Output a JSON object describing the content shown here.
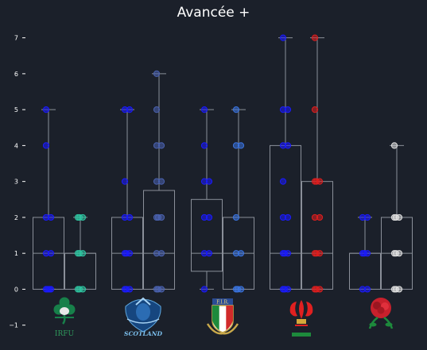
{
  "chart_data": {
    "type": "box",
    "title": "Avancée +",
    "ylim": [
      -1.25,
      7.5
    ],
    "yticks": [
      -1,
      0,
      1,
      2,
      3,
      4,
      5,
      6,
      7
    ],
    "grid": false,
    "legend": "none",
    "groups": [
      {
        "team": "Ireland",
        "crest_text": "IRFU",
        "boxes": [
          {
            "color": "#1a1aff",
            "q1": 0,
            "median": 1,
            "q3": 2,
            "whisker_low": 0,
            "whisker_high": 5,
            "points": [
              0,
              0,
              0,
              0,
              1,
              1,
              2,
              2,
              4,
              5
            ]
          },
          {
            "color": "#2ec4a0",
            "q1": 0,
            "median": 1,
            "q3": 1,
            "whisker_low": 0,
            "whisker_high": 2,
            "points": [
              0,
              0,
              0,
              1,
              1,
              1,
              2,
              2,
              2
            ]
          }
        ]
      },
      {
        "team": "Scotland",
        "crest_text": "SCOTLAND",
        "boxes": [
          {
            "color": "#1a1aff",
            "q1": 0,
            "median": 1,
            "q3": 2,
            "whisker_low": 0,
            "whisker_high": 5,
            "points": [
              0,
              0,
              0,
              1,
              1,
              1,
              2,
              2,
              3,
              5,
              5
            ]
          },
          {
            "color": "#4a62b0",
            "q1": 0,
            "median": 1,
            "q3": 2.75,
            "whisker_low": 0,
            "whisker_high": 6,
            "points": [
              0,
              0,
              0,
              1,
              1,
              2,
              2,
              2,
              3,
              3,
              4,
              4,
              5,
              6
            ]
          }
        ]
      },
      {
        "team": "Italy",
        "crest_text": "F.I.R.",
        "boxes": [
          {
            "color": "#1a1aff",
            "q1": 0.5,
            "median": 1,
            "q3": 2.5,
            "whisker_low": 0,
            "whisker_high": 5,
            "points": [
              0,
              1,
              1,
              2,
              2,
              3,
              3,
              4,
              5
            ]
          },
          {
            "color": "#3a74e0",
            "q1": 0,
            "median": 1,
            "q3": 2,
            "whisker_low": 0,
            "whisker_high": 5,
            "points": [
              0,
              0,
              0,
              1,
              1,
              2,
              4,
              4,
              5
            ]
          }
        ]
      },
      {
        "team": "Wales",
        "crest_text": "",
        "boxes": [
          {
            "color": "#1a1aff",
            "q1": 0,
            "median": 1,
            "q3": 4,
            "whisker_low": 0,
            "whisker_high": 7,
            "points": [
              0,
              0,
              0,
              1,
              1,
              1,
              2,
              2,
              3,
              4,
              4,
              5,
              5,
              7
            ]
          },
          {
            "color": "#e01e1e",
            "q1": 0,
            "median": 1,
            "q3": 3,
            "whisker_low": 0,
            "whisker_high": 7,
            "points": [
              0,
              0,
              0,
              1,
              1,
              1,
              2,
              2,
              3,
              3,
              3,
              5,
              7
            ]
          }
        ]
      },
      {
        "team": "England",
        "crest_text": "",
        "boxes": [
          {
            "color": "#1a1aff",
            "q1": 0,
            "median": 1,
            "q3": 1,
            "whisker_low": 0,
            "whisker_high": 2,
            "points": [
              0,
              0,
              1,
              1,
              1,
              2,
              2
            ]
          },
          {
            "color": "#e0e0e0",
            "q1": 0,
            "median": 1,
            "q3": 2,
            "whisker_low": 0,
            "whisker_high": 4,
            "points": [
              0,
              0,
              0,
              1,
              1,
              1,
              2,
              2,
              2,
              4
            ]
          }
        ]
      }
    ]
  }
}
